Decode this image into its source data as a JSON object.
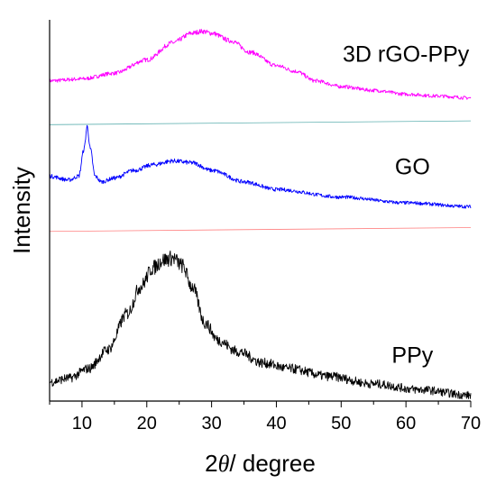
{
  "chart_data": {
    "type": "line",
    "title": "",
    "xlabel_prefix": "2",
    "xlabel_symbol": "θ",
    "xlabel_suffix": "/ degree",
    "ylabel": "Intensity",
    "xlim": [
      5,
      70
    ],
    "ylim": [
      0,
      10
    ],
    "xticks": [
      10,
      20,
      30,
      40,
      50,
      60,
      70
    ],
    "yticks_shown": false,
    "grid": false,
    "legend": "none",
    "series": [
      {
        "name": "3D rGO-PPy",
        "color": "#ff00ff",
        "x": [
          5,
          10,
          15,
          20,
          24,
          27,
          28.5,
          30,
          33,
          36,
          40,
          43,
          46,
          50,
          55,
          60,
          65,
          70
        ],
        "y": [
          8.4,
          8.45,
          8.6,
          8.95,
          9.4,
          9.65,
          9.7,
          9.65,
          9.45,
          9.15,
          8.8,
          8.65,
          8.4,
          8.25,
          8.15,
          8.05,
          8.0,
          7.95
        ]
      },
      {
        "name": "GO",
        "color": "#0000ff",
        "x": [
          5,
          8,
          9.5,
          10.3,
          10.8,
          11.3,
          12,
          13,
          15,
          18,
          21,
          24,
          27,
          30,
          35,
          40,
          50,
          60,
          70
        ],
        "y": [
          5.9,
          5.8,
          5.9,
          6.6,
          7.2,
          6.6,
          5.9,
          5.75,
          5.85,
          6.05,
          6.2,
          6.3,
          6.25,
          6.05,
          5.75,
          5.55,
          5.35,
          5.2,
          5.1
        ]
      },
      {
        "name": "PPy",
        "color": "#000000",
        "x": [
          5,
          8,
          11,
          14,
          17,
          19,
          21,
          22.5,
          24,
          25.5,
          27,
          29,
          31,
          34,
          38,
          42,
          48,
          55,
          62,
          70
        ],
        "y": [
          0.5,
          0.6,
          0.85,
          1.35,
          2.3,
          3.0,
          3.5,
          3.7,
          3.75,
          3.55,
          3.0,
          2.05,
          1.6,
          1.3,
          1.0,
          0.85,
          0.65,
          0.45,
          0.3,
          0.15
        ]
      }
    ],
    "reference_lines": [
      {
        "color": "#5fb0b0",
        "x": [
          5,
          70
        ],
        "y": [
          7.25,
          7.35
        ]
      },
      {
        "color": "#ff8080",
        "x": [
          5,
          70
        ],
        "y": [
          4.45,
          4.55
        ]
      }
    ],
    "annotations": [
      {
        "text": "3D rGO-PPy",
        "x": 60,
        "y": 8.9
      },
      {
        "text": "GO",
        "x": 61,
        "y": 5.95
      },
      {
        "text": "PPy",
        "x": 61,
        "y": 1.0
      }
    ]
  }
}
